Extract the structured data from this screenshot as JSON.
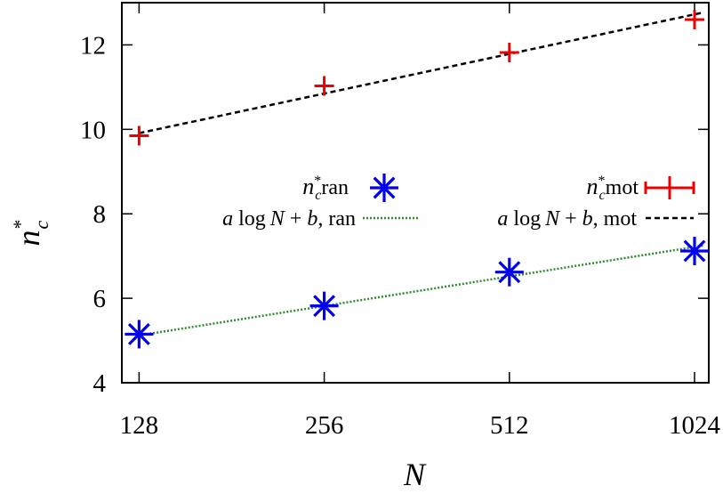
{
  "chart_data": {
    "type": "scatter",
    "x_scale": "log2",
    "x_ticks": [
      128,
      256,
      512,
      1024
    ],
    "x_tick_labels": [
      "128",
      "256",
      "512",
      "1024"
    ],
    "xlim": [
      120,
      1080
    ],
    "y_ticks": [
      4,
      6,
      8,
      10,
      12
    ],
    "y_tick_labels": [
      "4",
      "6",
      "8",
      "10",
      "12"
    ],
    "ylim": [
      4,
      13
    ],
    "xlabel": "N",
    "ylabel_base": "n",
    "ylabel_sup": "*",
    "ylabel_sub": "c",
    "grid": false,
    "legend_position": "center",
    "colors": {
      "ran": "#0000ee",
      "mot": "#ee0000",
      "fit_ran": "#2e8b2e",
      "fit_mot": "#000000"
    },
    "series": [
      {
        "key": "ran",
        "marker": "asterisk",
        "x": [
          128,
          256,
          512,
          1024
        ],
        "y": [
          5.15,
          5.82,
          6.62,
          7.12
        ],
        "yerr": [
          0.1,
          0.1,
          0.1,
          0.1
        ]
      },
      {
        "key": "mot",
        "marker": "plus",
        "x": [
          128,
          256,
          512,
          1024
        ],
        "y": [
          9.85,
          11.03,
          11.82,
          12.6
        ],
        "yerr": [
          0.2,
          0.2,
          0.2,
          0.2
        ]
      },
      {
        "key": "fit_ran",
        "style": "dotted",
        "x": [
          128,
          1060
        ],
        "y": [
          5.12,
          7.25
        ]
      },
      {
        "key": "fit_mot",
        "style": "dashed",
        "x": [
          128,
          1060
        ],
        "y": [
          9.91,
          12.77
        ]
      }
    ],
    "legend": {
      "ran_text": "ran",
      "mot_text": "mot",
      "fit_prefix": "a",
      "fit_log": "log",
      "fit_N": "N",
      "fit_plus": "+",
      "fit_b": "b",
      "fit_ran_suffix": ", ran",
      "fit_mot_suffix": ", mot"
    }
  }
}
